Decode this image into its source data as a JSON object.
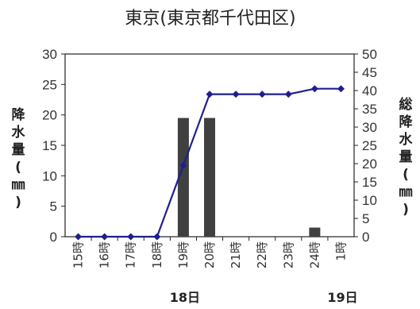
{
  "chart_data": {
    "type": "bar+line",
    "title": "東京(東京都千代田区)",
    "categories": [
      "15時",
      "16時",
      "17時",
      "18時",
      "19時",
      "20時",
      "21時",
      "22時",
      "23時",
      "24時",
      "1時"
    ],
    "date_labels": [
      {
        "text": "18日",
        "category_index": 4
      },
      {
        "text": "19日",
        "category_index": 10
      }
    ],
    "left_axis": {
      "label": [
        "降",
        "水",
        "量",
        "(",
        "㎜",
        ")"
      ],
      "ylim": [
        0,
        30
      ],
      "ticks": [
        0,
        5,
        10,
        15,
        20,
        25,
        30
      ]
    },
    "right_axis": {
      "label": [
        "総",
        "降",
        "水",
        "量",
        "(",
        "㎜",
        ")"
      ],
      "ylim": [
        0,
        50
      ],
      "ticks": [
        0,
        5,
        10,
        15,
        20,
        25,
        30,
        35,
        40,
        45,
        50
      ]
    },
    "series": [
      {
        "kind": "bar",
        "axis": "left",
        "values": [
          0,
          0,
          0,
          0,
          19.5,
          19.5,
          0,
          0,
          0,
          1.5,
          0
        ],
        "color": "#404040"
      },
      {
        "kind": "line",
        "axis": "right",
        "values": [
          0,
          0,
          0,
          0,
          19.5,
          39,
          39,
          39,
          39,
          40.5,
          40.5
        ],
        "color": "#1f1f8f"
      }
    ],
    "grid": false,
    "legend": "none"
  }
}
